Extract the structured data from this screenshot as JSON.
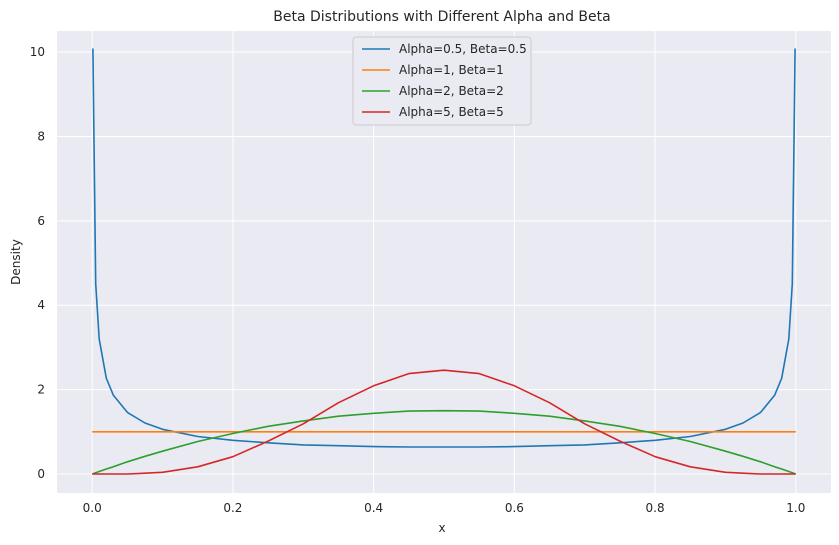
{
  "chart_data": {
    "type": "line",
    "title": "Beta Distributions with Different Alpha and Beta",
    "xlabel": "x",
    "ylabel": "Density",
    "xlim": [
      -0.05,
      1.05
    ],
    "ylim": [
      -0.45,
      10.5
    ],
    "xticks": [
      0.0,
      0.2,
      0.4,
      0.6,
      0.8,
      1.0
    ],
    "xtick_labels": [
      "0.0",
      "0.2",
      "0.4",
      "0.6",
      "0.8",
      "1.0"
    ],
    "yticks": [
      0,
      2,
      4,
      6,
      8,
      10
    ],
    "ytick_labels": [
      "0",
      "2",
      "4",
      "6",
      "8",
      "10"
    ],
    "grid": true,
    "legend_position": "top-center",
    "background": "#eaeaf2",
    "x": [
      0.001,
      0.005,
      0.01,
      0.02,
      0.03,
      0.05,
      0.075,
      0.1,
      0.15,
      0.2,
      0.25,
      0.3,
      0.35,
      0.4,
      0.45,
      0.5,
      0.55,
      0.6,
      0.65,
      0.7,
      0.75,
      0.8,
      0.85,
      0.9,
      0.925,
      0.95,
      0.97,
      0.98,
      0.99,
      0.995,
      0.999
    ],
    "series": [
      {
        "name": "Alpha=0.5, Beta=0.5",
        "color": "#1f77b4",
        "values": [
          10.07,
          4.51,
          3.2,
          2.27,
          1.87,
          1.46,
          1.21,
          1.06,
          0.89,
          0.8,
          0.74,
          0.69,
          0.67,
          0.65,
          0.64,
          0.64,
          0.64,
          0.65,
          0.67,
          0.69,
          0.74,
          0.8,
          0.89,
          1.06,
          1.21,
          1.46,
          1.87,
          2.27,
          3.2,
          4.51,
          10.07
        ]
      },
      {
        "name": "Alpha=1, Beta=1",
        "color": "#ff7f0e",
        "values": [
          1,
          1,
          1,
          1,
          1,
          1,
          1,
          1,
          1,
          1,
          1,
          1,
          1,
          1,
          1,
          1,
          1,
          1,
          1,
          1,
          1,
          1,
          1,
          1,
          1,
          1,
          1,
          1,
          1,
          1,
          1
        ]
      },
      {
        "name": "Alpha=2, Beta=2",
        "color": "#2ca02c",
        "values": [
          0.006,
          0.03,
          0.06,
          0.12,
          0.17,
          0.29,
          0.42,
          0.54,
          0.77,
          0.96,
          1.13,
          1.26,
          1.37,
          1.44,
          1.49,
          1.5,
          1.49,
          1.44,
          1.37,
          1.26,
          1.13,
          0.96,
          0.77,
          0.54,
          0.42,
          0.29,
          0.17,
          0.12,
          0.06,
          0.03,
          0.006
        ]
      },
      {
        "name": "Alpha=5, Beta=5",
        "color": "#d62728",
        "values": [
          0.0,
          0.0,
          0.0,
          0.0,
          0.0,
          0.0,
          0.02,
          0.04,
          0.17,
          0.41,
          0.78,
          1.19,
          1.69,
          2.09,
          2.38,
          2.46,
          2.38,
          2.09,
          1.69,
          1.19,
          0.78,
          0.41,
          0.17,
          0.04,
          0.02,
          0.0,
          0.0,
          0.0,
          0.0,
          0.0,
          0.0
        ]
      }
    ]
  }
}
